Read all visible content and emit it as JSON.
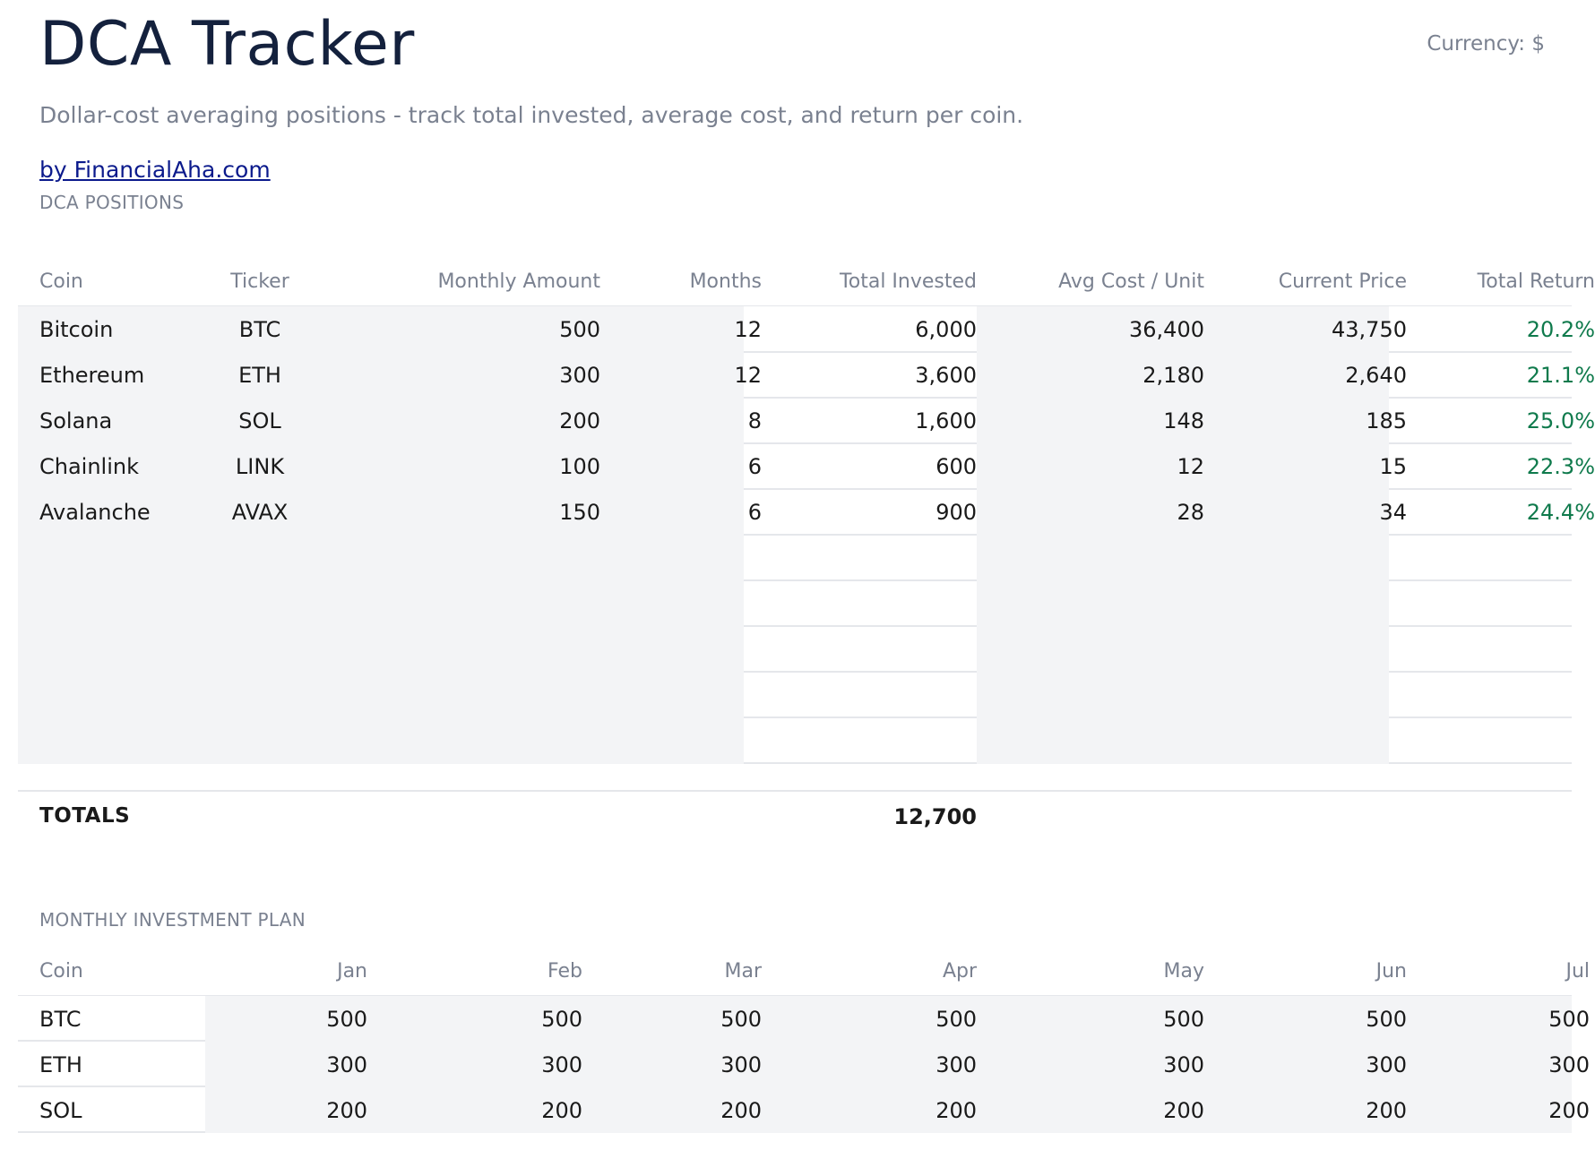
{
  "header": {
    "title": "DCA Tracker",
    "currency": "Currency: $",
    "subtitle": "Dollar-cost averaging positions - track total invested, average cost, and return per coin.",
    "byline": "by FinancialAha.com"
  },
  "positions": {
    "section_label": "DCA POSITIONS",
    "columns": [
      "Coin",
      "Ticker",
      "Monthly Amount",
      "Months",
      "Total Invested",
      "Avg Cost / Unit",
      "Current Price",
      "Total Return"
    ],
    "rows": [
      {
        "coin": "Bitcoin",
        "ticker": "BTC",
        "monthly": "500",
        "months": "12",
        "invested": "6,000",
        "avg_cost": "36,400",
        "price": "43,750",
        "return": "20.2%"
      },
      {
        "coin": "Ethereum",
        "ticker": "ETH",
        "monthly": "300",
        "months": "12",
        "invested": "3,600",
        "avg_cost": "2,180",
        "price": "2,640",
        "return": "21.1%"
      },
      {
        "coin": "Solana",
        "ticker": "SOL",
        "monthly": "200",
        "months": "8",
        "invested": "1,600",
        "avg_cost": "148",
        "price": "185",
        "return": "25.0%"
      },
      {
        "coin": "Chainlink",
        "ticker": "LINK",
        "monthly": "100",
        "months": "6",
        "invested": "600",
        "avg_cost": "12",
        "price": "15",
        "return": "22.3%"
      },
      {
        "coin": "Avalanche",
        "ticker": "AVAX",
        "monthly": "150",
        "months": "6",
        "invested": "900",
        "avg_cost": "28",
        "price": "34",
        "return": "24.4%"
      }
    ],
    "totals_label": "TOTALS",
    "totals_invested": "12,700"
  },
  "plan": {
    "section_label": "MONTHLY INVESTMENT PLAN",
    "columns": [
      "Coin",
      "Jan",
      "Feb",
      "Mar",
      "Apr",
      "May",
      "Jun",
      "Jul"
    ],
    "rows": [
      {
        "coin": "BTC",
        "values": [
          "500",
          "500",
          "500",
          "500",
          "500",
          "500",
          "500"
        ]
      },
      {
        "coin": "ETH",
        "values": [
          "300",
          "300",
          "300",
          "300",
          "300",
          "300",
          "300"
        ]
      },
      {
        "coin": "SOL",
        "values": [
          "200",
          "200",
          "200",
          "200",
          "200",
          "200",
          "200"
        ]
      }
    ]
  },
  "colors": {
    "title": "#14213d",
    "muted": "#7a8190",
    "link": "#0b1a8c",
    "return_positive": "#0f7a4c",
    "shade": "#f3f4f6"
  }
}
